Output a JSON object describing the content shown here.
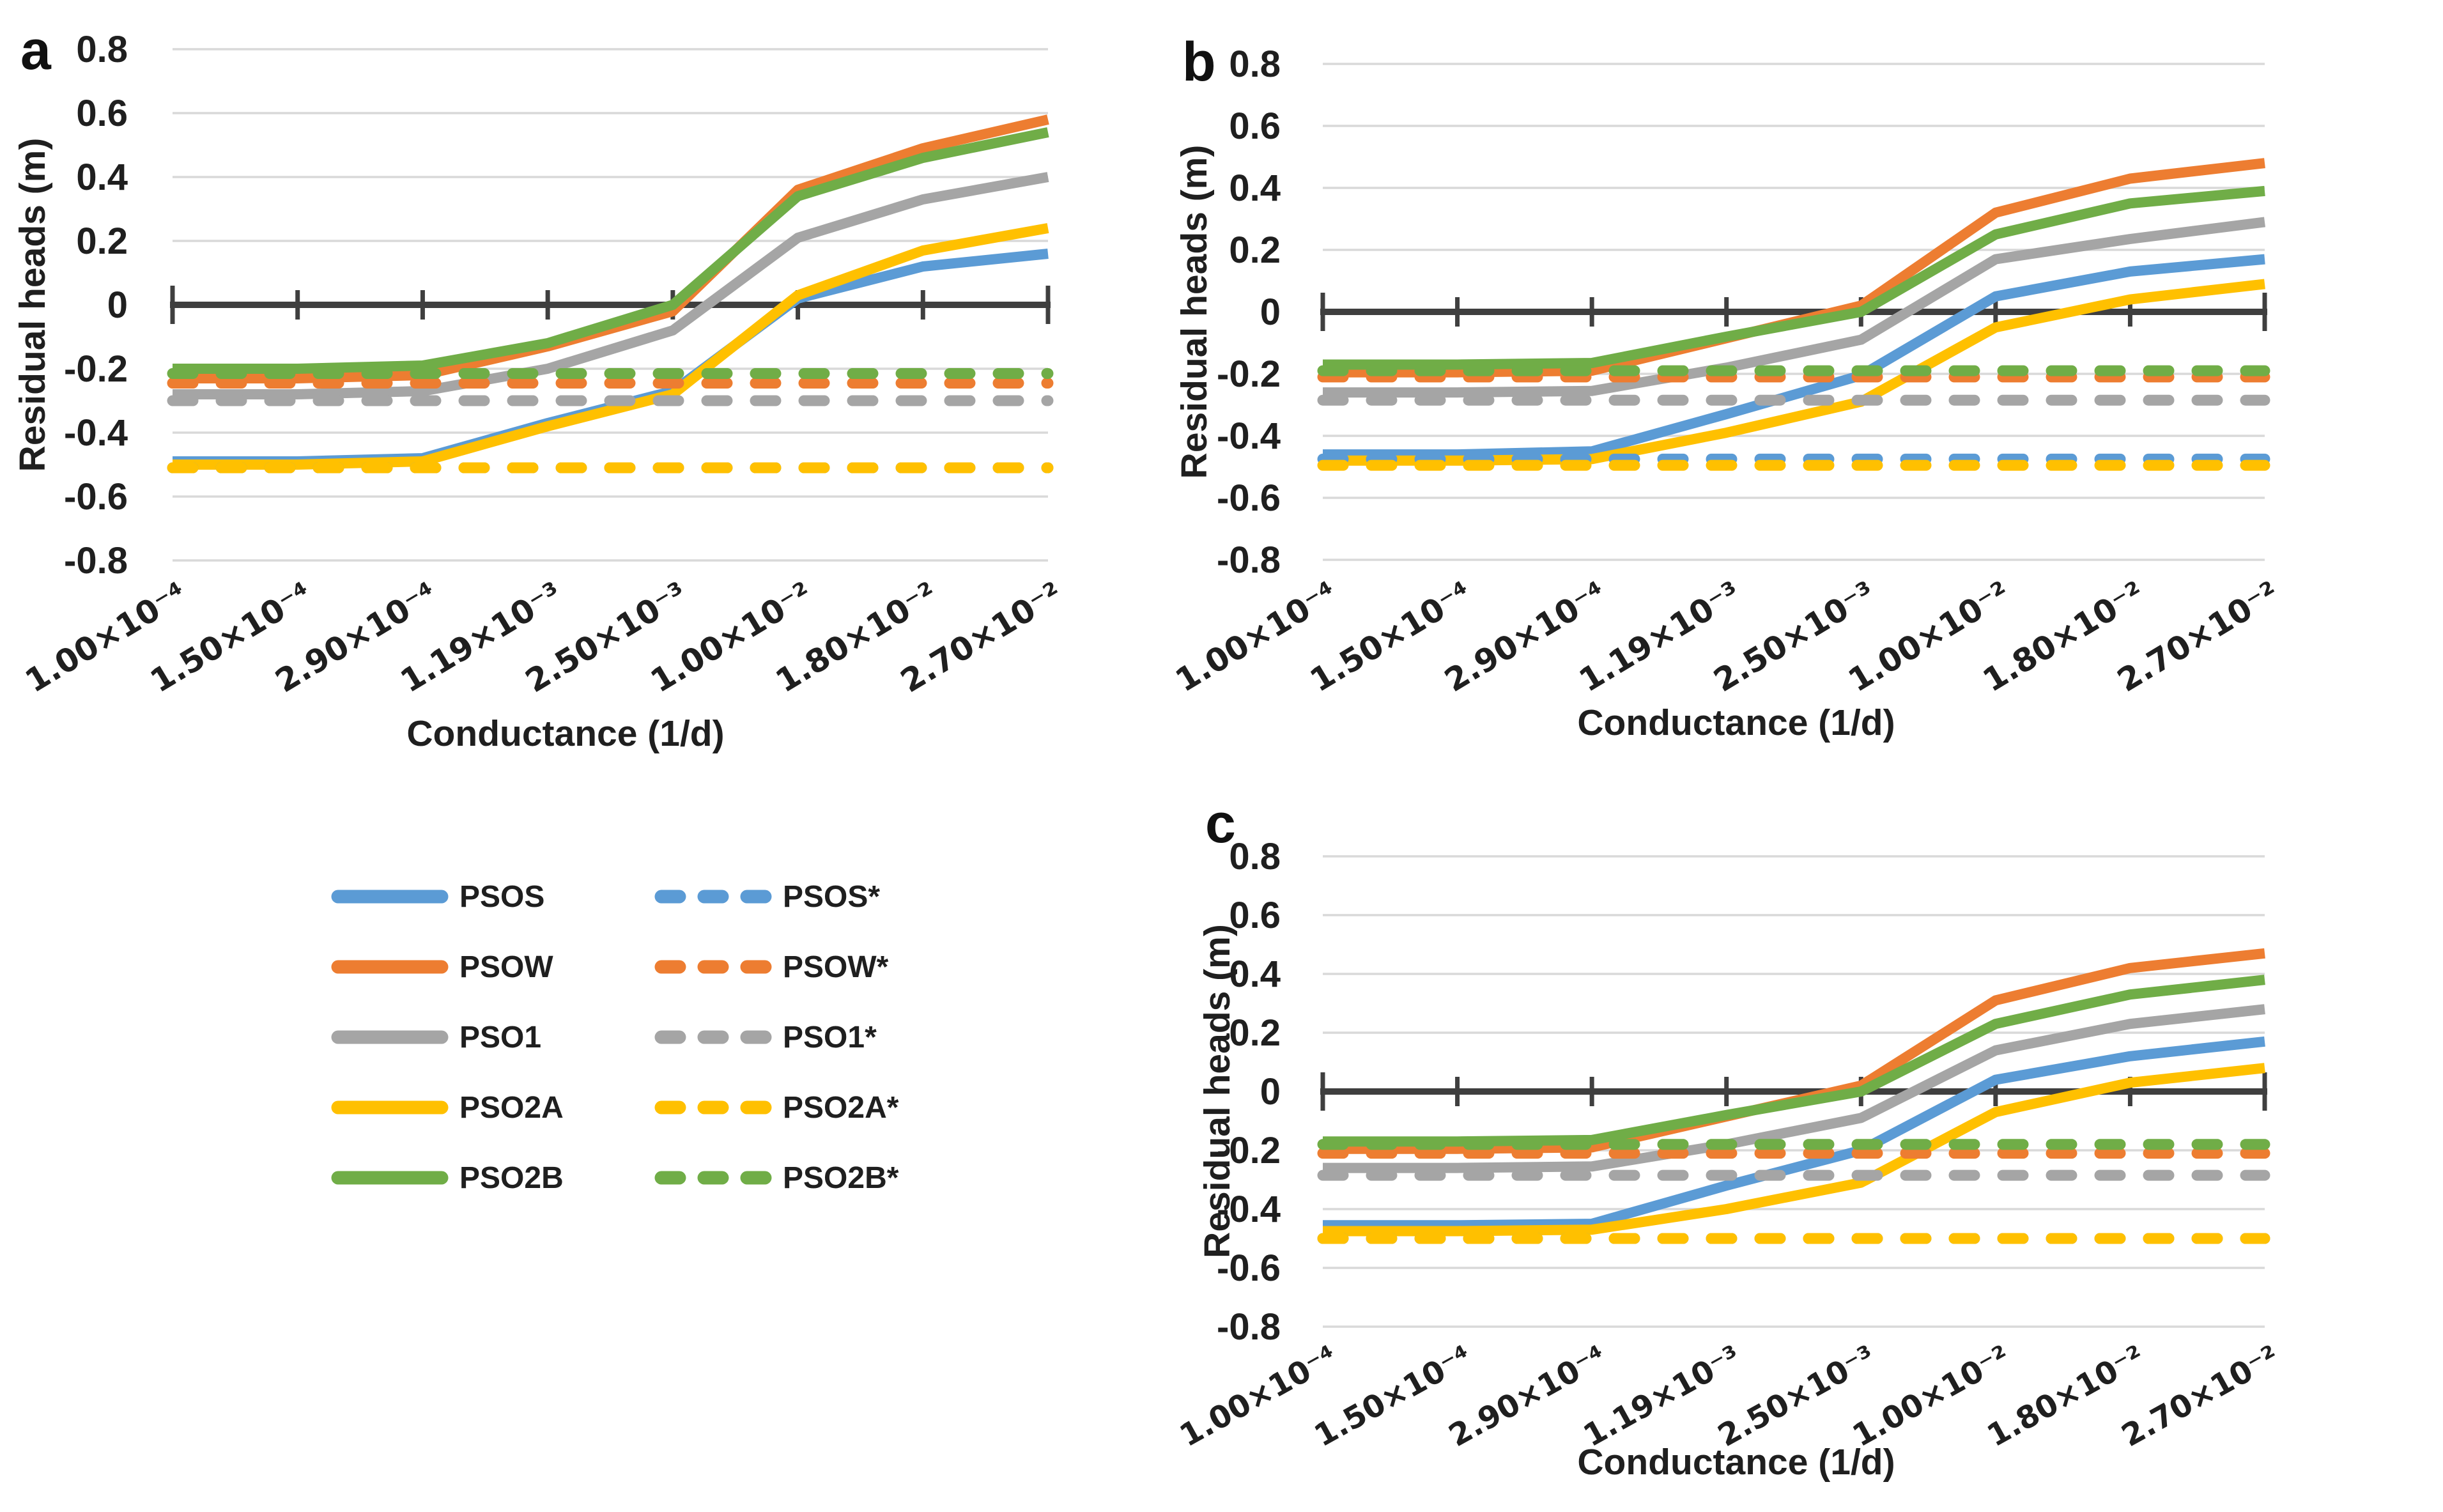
{
  "figure": {
    "background": "#ffffff",
    "axis_color": "#3f3f3f",
    "grid_color": "#d9d9d9",
    "text_color": "#1f1f1f"
  },
  "legend": {
    "left": [
      {
        "label": "PSOS",
        "color": "#5B9BD5",
        "style": "solid"
      },
      {
        "label": "PSOW",
        "color": "#ED7D31",
        "style": "solid"
      },
      {
        "label": "PSO1",
        "color": "#A5A5A5",
        "style": "solid"
      },
      {
        "label": "PSO2A",
        "color": "#FFC000",
        "style": "solid"
      },
      {
        "label": "PSO2B",
        "color": "#70AD47",
        "style": "solid"
      }
    ],
    "right": [
      {
        "label": "PSOS*",
        "color": "#5B9BD5",
        "style": "dashed"
      },
      {
        "label": "PSOW*",
        "color": "#ED7D31",
        "style": "dashed"
      },
      {
        "label": "PSO1*",
        "color": "#A5A5A5",
        "style": "dashed"
      },
      {
        "label": "PSO2A*",
        "color": "#FFC000",
        "style": "dashed"
      },
      {
        "label": "PSO2B*",
        "color": "#70AD47",
        "style": "dashed"
      }
    ]
  },
  "chart_data": [
    {
      "id": "a",
      "type": "line",
      "panel_label": "a",
      "xlabel": "Conductance (1/d)",
      "ylabel": "Residual heads (m)",
      "ylim": [
        -0.8,
        0.8
      ],
      "ytick_step": 0.2,
      "grid": true,
      "legend_position": "below-left",
      "y_ticks": [
        "0.8",
        "0.6",
        "0.4",
        "0.2",
        "0",
        "-0.2",
        "-0.4",
        "-0.6",
        "-0.8"
      ],
      "categories": [
        "1.00×10⁻⁴",
        "1.50×10⁻⁴",
        "2.90×10⁻⁴",
        "1.19×10⁻³",
        "2.50×10⁻³",
        "1.00×10⁻²",
        "1.80×10⁻²",
        "2.70×10⁻²"
      ],
      "series": [
        {
          "name": "PSOS",
          "color": "#5B9BD5",
          "style": "solid",
          "values": [
            -0.49,
            -0.49,
            -0.48,
            -0.37,
            -0.27,
            0.02,
            0.12,
            0.16
          ]
        },
        {
          "name": "PSOW",
          "color": "#ED7D31",
          "style": "solid",
          "values": [
            -0.23,
            -0.23,
            -0.22,
            -0.13,
            -0.02,
            0.36,
            0.49,
            0.58
          ]
        },
        {
          "name": "PSO1",
          "color": "#A5A5A5",
          "style": "solid",
          "values": [
            -0.28,
            -0.28,
            -0.27,
            -0.2,
            -0.08,
            0.21,
            0.33,
            0.4
          ]
        },
        {
          "name": "PSO2A",
          "color": "#FFC000",
          "style": "solid",
          "values": [
            -0.5,
            -0.5,
            -0.49,
            -0.38,
            -0.28,
            0.03,
            0.17,
            0.24
          ]
        },
        {
          "name": "PSO2B",
          "color": "#70AD47",
          "style": "solid",
          "values": [
            -0.2,
            -0.2,
            -0.19,
            -0.12,
            0.0,
            0.34,
            0.46,
            0.54
          ]
        },
        {
          "name": "PSOS*",
          "color": "#5B9BD5",
          "style": "dashed",
          "values": [
            -0.51,
            -0.51,
            -0.51,
            -0.51,
            -0.51,
            -0.51,
            -0.51,
            -0.51
          ]
        },
        {
          "name": "PSOW*",
          "color": "#ED7D31",
          "style": "dashed",
          "values": [
            -0.245,
            -0.245,
            -0.245,
            -0.245,
            -0.245,
            -0.245,
            -0.245,
            -0.245
          ]
        },
        {
          "name": "PSO1*",
          "color": "#A5A5A5",
          "style": "dashed",
          "values": [
            -0.3,
            -0.3,
            -0.3,
            -0.3,
            -0.3,
            -0.3,
            -0.3,
            -0.3
          ]
        },
        {
          "name": "PSO2A*",
          "color": "#FFC000",
          "style": "dashed",
          "values": [
            -0.51,
            -0.51,
            -0.51,
            -0.51,
            -0.51,
            -0.51,
            -0.51,
            -0.51
          ]
        },
        {
          "name": "PSO2B*",
          "color": "#70AD47",
          "style": "dashed",
          "values": [
            -0.215,
            -0.215,
            -0.215,
            -0.215,
            -0.215,
            -0.215,
            -0.215,
            -0.215
          ]
        }
      ]
    },
    {
      "id": "b",
      "type": "line",
      "panel_label": "b",
      "xlabel": "Conductance (1/d)",
      "ylabel": "Residual heads (m)",
      "ylim": [
        -0.8,
        0.8
      ],
      "ytick_step": 0.2,
      "grid": true,
      "y_ticks": [
        "0.8",
        "0.6",
        "0.4",
        "0.2",
        "0",
        "-0.2",
        "-0.4",
        "-0.6",
        "-0.8"
      ],
      "categories": [
        "1.00×10⁻⁴",
        "1.50×10⁻⁴",
        "2.90×10⁻⁴",
        "1.19×10⁻³",
        "2.50×10⁻³",
        "1.00×10⁻²",
        "1.80×10⁻²",
        "2.70×10⁻²"
      ],
      "series": [
        {
          "name": "PSOS",
          "color": "#5B9BD5",
          "style": "solid",
          "values": [
            -0.46,
            -0.46,
            -0.45,
            -0.33,
            -0.205,
            0.05,
            0.13,
            0.17
          ]
        },
        {
          "name": "PSOW",
          "color": "#ED7D31",
          "style": "solid",
          "values": [
            -0.195,
            -0.195,
            -0.19,
            -0.085,
            0.02,
            0.32,
            0.43,
            0.48
          ]
        },
        {
          "name": "PSO1",
          "color": "#A5A5A5",
          "style": "solid",
          "values": [
            -0.26,
            -0.26,
            -0.255,
            -0.18,
            -0.09,
            0.17,
            0.235,
            0.29
          ]
        },
        {
          "name": "PSO2A",
          "color": "#FFC000",
          "style": "solid",
          "values": [
            -0.48,
            -0.48,
            -0.475,
            -0.39,
            -0.29,
            -0.05,
            0.04,
            0.09
          ]
        },
        {
          "name": "PSO2B",
          "color": "#70AD47",
          "style": "solid",
          "values": [
            -0.17,
            -0.17,
            -0.165,
            -0.08,
            0.0,
            0.25,
            0.35,
            0.39
          ]
        },
        {
          "name": "PSOS*",
          "color": "#5B9BD5",
          "style": "dashed",
          "values": [
            -0.475,
            -0.475,
            -0.475,
            -0.475,
            -0.475,
            -0.475,
            -0.475,
            -0.475
          ]
        },
        {
          "name": "PSOW*",
          "color": "#ED7D31",
          "style": "dashed",
          "values": [
            -0.21,
            -0.21,
            -0.21,
            -0.21,
            -0.21,
            -0.21,
            -0.21,
            -0.21
          ]
        },
        {
          "name": "PSO1*",
          "color": "#A5A5A5",
          "style": "dashed",
          "values": [
            -0.285,
            -0.285,
            -0.285,
            -0.285,
            -0.285,
            -0.285,
            -0.285,
            -0.285
          ]
        },
        {
          "name": "PSO2A*",
          "color": "#FFC000",
          "style": "dashed",
          "values": [
            -0.495,
            -0.495,
            -0.495,
            -0.495,
            -0.495,
            -0.495,
            -0.495,
            -0.495
          ]
        },
        {
          "name": "PSO2B*",
          "color": "#70AD47",
          "style": "dashed",
          "values": [
            -0.19,
            -0.19,
            -0.19,
            -0.19,
            -0.19,
            -0.19,
            -0.19,
            -0.19
          ]
        }
      ]
    },
    {
      "id": "c",
      "type": "line",
      "panel_label": "c",
      "xlabel": "Conductance (1/d)",
      "ylabel": "Residual heads (m)",
      "ylim": [
        -0.8,
        0.8
      ],
      "ytick_step": 0.2,
      "grid": true,
      "y_ticks": [
        "0.8",
        "0.6",
        "0.4",
        "0.2",
        "0",
        "-0.2",
        "-0.4",
        "-0.6",
        "-0.8"
      ],
      "categories": [
        "1.00×10⁻⁴",
        "1.50×10⁻⁴",
        "2.90×10⁻⁴",
        "1.19×10⁻³",
        "2.50×10⁻³",
        "1.00×10⁻²",
        "1.80×10⁻²",
        "2.70×10⁻²"
      ],
      "series": [
        {
          "name": "PSOS",
          "color": "#5B9BD5",
          "style": "solid",
          "values": [
            -0.455,
            -0.455,
            -0.45,
            -0.32,
            -0.2,
            0.04,
            0.12,
            0.17
          ]
        },
        {
          "name": "PSOW",
          "color": "#ED7D31",
          "style": "solid",
          "values": [
            -0.195,
            -0.195,
            -0.19,
            -0.085,
            0.02,
            0.31,
            0.42,
            0.47
          ]
        },
        {
          "name": "PSO1",
          "color": "#A5A5A5",
          "style": "solid",
          "values": [
            -0.26,
            -0.26,
            -0.255,
            -0.18,
            -0.09,
            0.14,
            0.23,
            0.28
          ]
        },
        {
          "name": "PSO2A",
          "color": "#FFC000",
          "style": "solid",
          "values": [
            -0.475,
            -0.475,
            -0.47,
            -0.4,
            -0.31,
            -0.07,
            0.03,
            0.08
          ]
        },
        {
          "name": "PSO2B",
          "color": "#70AD47",
          "style": "solid",
          "values": [
            -0.17,
            -0.17,
            -0.165,
            -0.08,
            0.0,
            0.23,
            0.33,
            0.38
          ]
        },
        {
          "name": "PSOS*",
          "color": "#5B9BD5",
          "style": "dashed",
          "values": [
            -0.5,
            -0.5,
            -0.5,
            -0.5,
            -0.5,
            -0.5,
            -0.5,
            -0.5
          ]
        },
        {
          "name": "PSOW*",
          "color": "#ED7D31",
          "style": "dashed",
          "values": [
            -0.21,
            -0.21,
            -0.21,
            -0.21,
            -0.21,
            -0.21,
            -0.21,
            -0.21
          ]
        },
        {
          "name": "PSO1*",
          "color": "#A5A5A5",
          "style": "dashed",
          "values": [
            -0.285,
            -0.285,
            -0.285,
            -0.285,
            -0.285,
            -0.285,
            -0.285,
            -0.285
          ]
        },
        {
          "name": "PSO2A*",
          "color": "#FFC000",
          "style": "dashed",
          "values": [
            -0.5,
            -0.5,
            -0.5,
            -0.5,
            -0.5,
            -0.5,
            -0.5,
            -0.5
          ]
        },
        {
          "name": "PSO2B*",
          "color": "#70AD47",
          "style": "dashed",
          "values": [
            -0.18,
            -0.18,
            -0.18,
            -0.18,
            -0.18,
            -0.18,
            -0.18,
            -0.18
          ]
        }
      ]
    }
  ]
}
